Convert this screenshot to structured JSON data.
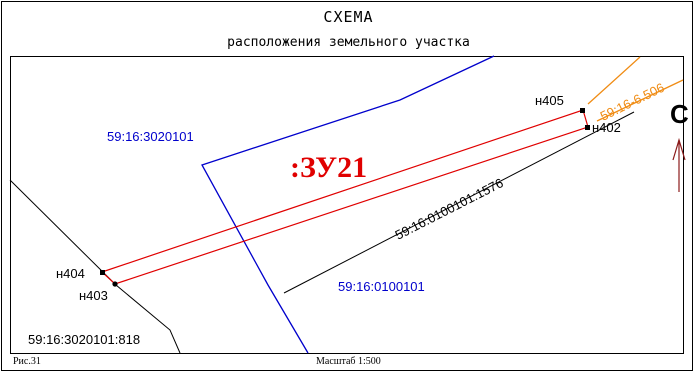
{
  "header": {
    "title": "СХЕМА",
    "subtitle": "расположения земельного участка"
  },
  "parcel": {
    "label": ":ЗУ21",
    "points": [
      "н405",
      "н402",
      "н404",
      "н403"
    ]
  },
  "cadastral": {
    "quarter_top": "59:16:3020101",
    "quarter_bottom": "59:16:0100101",
    "parcel_line": "59:16:0100101:1576",
    "parcel_corner": "59:16:3020101:818",
    "orange_parcel": "59:16-6.506"
  },
  "north": {
    "label": "С"
  },
  "footer": {
    "figure": "Рис.31",
    "scale": "Масштаб 1:500"
  },
  "colors": {
    "parcel": "#e00000",
    "quarter": "#0000cc",
    "orange": "#f08c14",
    "north_arrow": "#8b1a1a"
  }
}
